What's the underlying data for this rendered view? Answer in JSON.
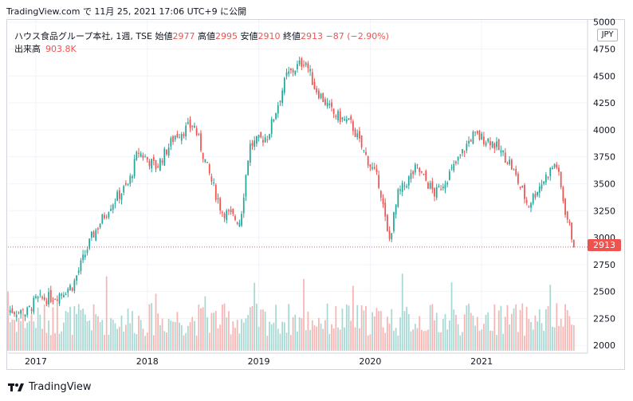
{
  "header": {
    "published": "TradingView.com で 11月 25, 2021 17:06 UTC+9 に公開"
  },
  "legend": {
    "symbol": "ハウス食品グループ本社, 1週, TSE",
    "open_label": "始値",
    "open": "2977",
    "high_label": "高値",
    "high": "2995",
    "low_label": "安値",
    "low": "2910",
    "close_label": "終値",
    "close": "2913",
    "change": "−87 (−2.90%)",
    "volume_label": "出来高",
    "volume": "903.8K"
  },
  "currency": "JPY",
  "last_price_label": "2913",
  "footer": {
    "brand": "TradingView"
  },
  "colors": {
    "up": "#26a69a",
    "down": "#ef5350",
    "up_vol": "#a7d8d3",
    "down_vol": "#f7b4b2",
    "grid": "#f0f3fa",
    "axis_text": "#131722"
  },
  "chart_data": {
    "type": "candlestick",
    "interval": "1週",
    "y_axis_ticks": [
      2000,
      2250,
      2500,
      2750,
      3000,
      3250,
      3500,
      3750,
      4000,
      4250,
      4500,
      4750,
      5000
    ],
    "x_axis_ticks": [
      "2017",
      "2018",
      "2019",
      "2020",
      "2021"
    ],
    "ylim": [
      1950,
      5020
    ],
    "last_price": 2913,
    "grid": true,
    "series": [
      {
        "x": "2016-10",
        "close": 2330
      },
      {
        "x": "2016-12",
        "close": 2300
      },
      {
        "x": "2017-01",
        "close": 2420
      },
      {
        "x": "2017-03",
        "close": 2450
      },
      {
        "x": "2017-05",
        "close": 2560
      },
      {
        "x": "2017-07",
        "close": 3000
      },
      {
        "x": "2017-09",
        "close": 3300
      },
      {
        "x": "2017-11",
        "close": 3500
      },
      {
        "x": "2017-12",
        "close": 3800
      },
      {
        "x": "2018-02",
        "close": 3650
      },
      {
        "x": "2018-04",
        "close": 3950
      },
      {
        "x": "2018-06",
        "close": 4050
      },
      {
        "x": "2018-08",
        "close": 3500
      },
      {
        "x": "2018-09",
        "close": 3250
      },
      {
        "x": "2018-11",
        "close": 3150
      },
      {
        "x": "2018-12",
        "close": 3850
      },
      {
        "x": "2019-02",
        "close": 3950
      },
      {
        "x": "2019-04",
        "close": 4500
      },
      {
        "x": "2019-06",
        "close": 4650
      },
      {
        "x": "2019-07",
        "close": 4400
      },
      {
        "x": "2019-09",
        "close": 4150
      },
      {
        "x": "2019-11",
        "close": 4050
      },
      {
        "x": "2019-12",
        "close": 3850
      },
      {
        "x": "2020-02",
        "close": 3500
      },
      {
        "x": "2020-03",
        "close": 2950
      },
      {
        "x": "2020-04",
        "close": 3400
      },
      {
        "x": "2020-06",
        "close": 3650
      },
      {
        "x": "2020-08",
        "close": 3400
      },
      {
        "x": "2020-10",
        "close": 3650
      },
      {
        "x": "2020-12",
        "close": 3950
      },
      {
        "x": "2021-02",
        "close": 3900
      },
      {
        "x": "2021-04",
        "close": 3700
      },
      {
        "x": "2021-06",
        "close": 3300
      },
      {
        "x": "2021-07",
        "close": 3450
      },
      {
        "x": "2021-09",
        "close": 3700
      },
      {
        "x": "2021-10",
        "close": 3250
      },
      {
        "x": "2021-11",
        "close": 2913
      }
    ]
  }
}
